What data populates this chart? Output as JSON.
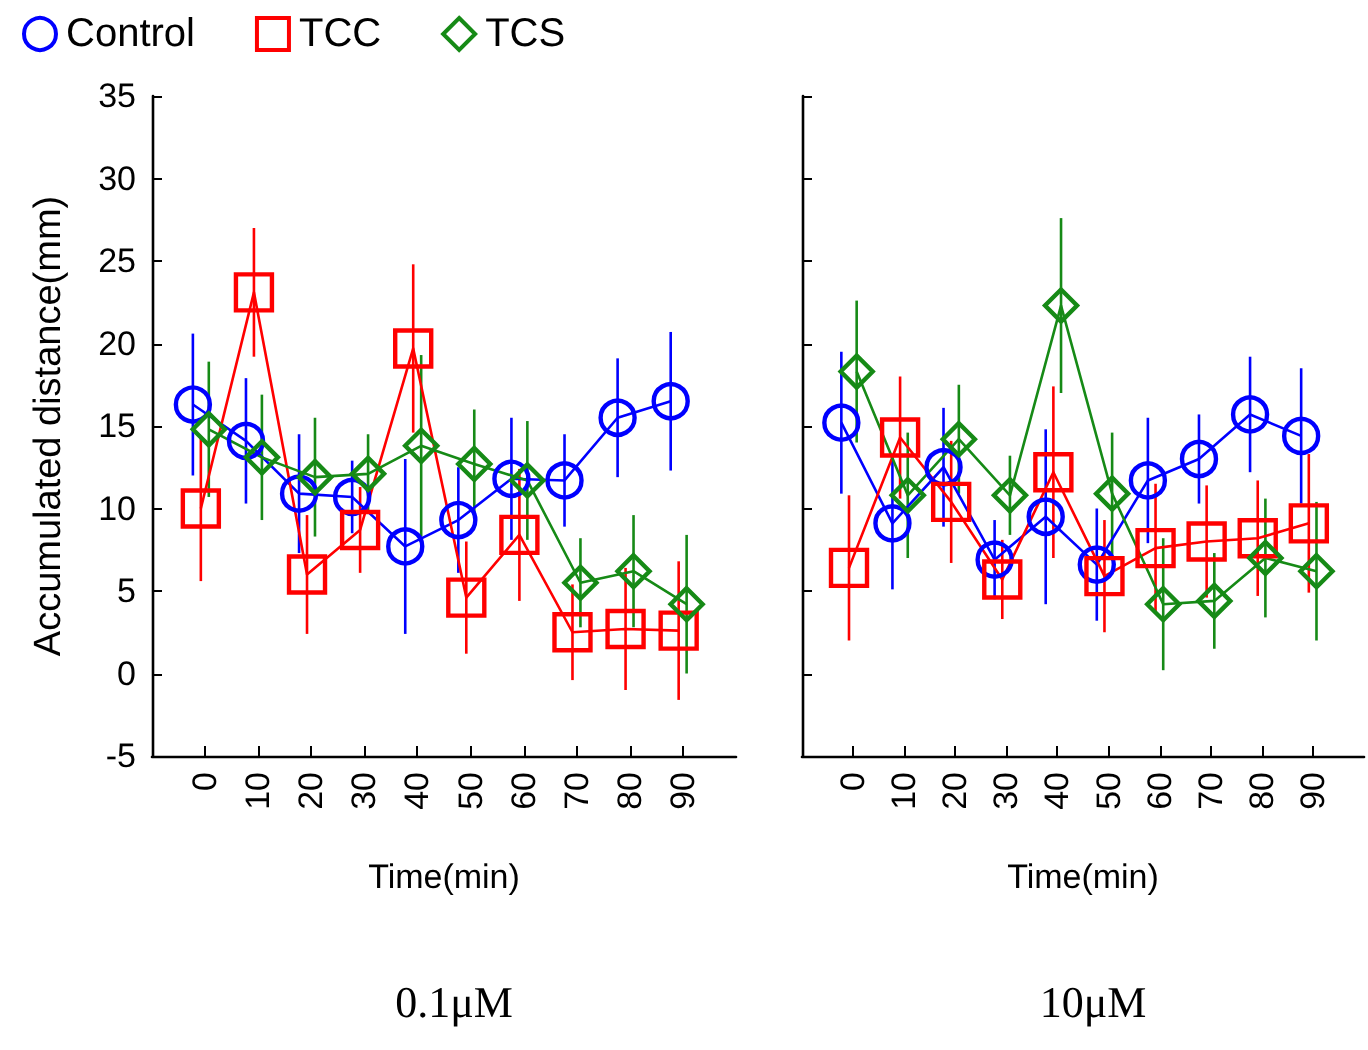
{
  "chart_data": [
    {
      "type": "line",
      "title": "0.1μM",
      "xlabel": "Time(min)",
      "ylabel": "Accumulated distance(mm)",
      "categories": [
        "0",
        "10",
        "20",
        "30",
        "40",
        "50",
        "60",
        "70",
        "80",
        "90"
      ],
      "ylim": [
        -5,
        35
      ],
      "yticks": [
        -5,
        0,
        5,
        10,
        15,
        20,
        25,
        30,
        35
      ],
      "grid": false,
      "legend": "top left",
      "series": [
        {
          "name": "Control",
          "color": "#0000ff",
          "marker": "circle",
          "values": [
            16.3,
            14.1,
            10.9,
            10.7,
            7.7,
            9.3,
            11.8,
            11.7,
            15.5,
            16.5
          ],
          "errors": [
            4.3,
            3.8,
            3.6,
            2.2,
            5.3,
            3.2,
            3.7,
            2.8,
            3.6,
            4.2
          ]
        },
        {
          "name": "TCC",
          "color": "#ff0000",
          "marker": "square",
          "values": [
            10.0,
            23.1,
            6.0,
            8.7,
            19.7,
            4.6,
            8.4,
            2.5,
            2.7,
            2.6
          ],
          "errors": [
            4.4,
            3.9,
            3.6,
            2.6,
            5.1,
            3.4,
            4.0,
            2.9,
            3.7,
            4.2
          ]
        },
        {
          "name": "TCS",
          "color": "#168a16",
          "marker": "diamond",
          "values": [
            14.8,
            13.1,
            11.9,
            12.1,
            13.8,
            12.7,
            11.7,
            5.5,
            6.2,
            4.2
          ],
          "errors": [
            4.1,
            3.8,
            3.6,
            2.4,
            5.5,
            3.3,
            3.6,
            2.7,
            3.4,
            4.2
          ]
        }
      ]
    },
    {
      "type": "line",
      "title": "10μM",
      "xlabel": "Time(min)",
      "categories": [
        "0",
        "10",
        "20",
        "30",
        "40",
        "50",
        "60",
        "70",
        "80",
        "90"
      ],
      "ylim": [
        -5,
        35
      ],
      "yticks": [
        -5,
        0,
        5,
        10,
        15,
        20,
        25,
        30,
        35
      ],
      "grid": false,
      "tick_labels": "x",
      "series": [
        {
          "name": "Control",
          "color": "#0000ff",
          "marker": "circle",
          "values": [
            15.2,
            9.1,
            12.5,
            6.9,
            9.5,
            6.6,
            11.7,
            13.0,
            15.7,
            14.4
          ],
          "errors": [
            4.3,
            4.0,
            3.6,
            2.4,
            5.3,
            3.4,
            3.8,
            2.7,
            3.5,
            4.1
          ]
        },
        {
          "name": "TCC",
          "color": "#ff0000",
          "marker": "square",
          "values": [
            6.4,
            14.3,
            10.4,
            5.7,
            12.2,
            5.9,
            7.6,
            8.0,
            8.2,
            9.1
          ],
          "errors": [
            4.4,
            3.7,
            3.7,
            2.4,
            5.2,
            3.4,
            3.9,
            3.4,
            3.5,
            4.2
          ]
        },
        {
          "name": "TCS",
          "color": "#168a16",
          "marker": "diamond",
          "values": [
            18.3,
            10.8,
            14.2,
            10.8,
            22.3,
            10.9,
            4.2,
            4.4,
            7.0,
            6.2
          ],
          "errors": [
            4.3,
            3.8,
            3.3,
            2.4,
            5.3,
            3.7,
            4.0,
            2.9,
            3.6,
            4.2
          ]
        }
      ]
    }
  ]
}
